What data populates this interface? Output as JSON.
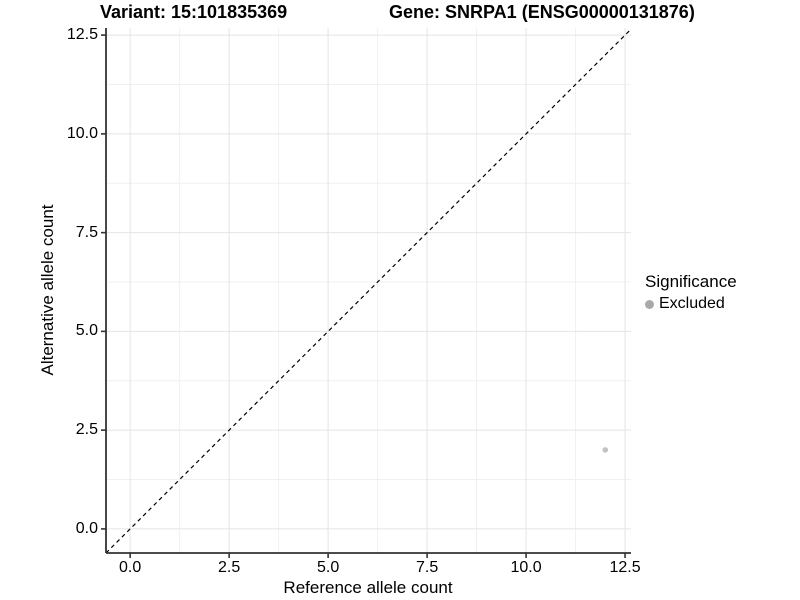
{
  "page": {
    "background": "#ffffff"
  },
  "chart_data": {
    "type": "scatter",
    "titles": {
      "left": "Variant: 15:101835369",
      "right": "Gene: SNRPA1 (ENSG00000131876)"
    },
    "xlabel": "Reference allele count",
    "ylabel": "Alternative allele count",
    "axes": {
      "xlim": [
        -0.61,
        12.65
      ],
      "ylim": [
        -0.61,
        12.68
      ],
      "x_ticks": {
        "values": [
          0,
          2.5,
          5,
          7.5,
          10,
          12.5
        ],
        "labels": [
          "0.0",
          "2.5",
          "5.0",
          "7.5",
          "10.0",
          "12.5"
        ]
      },
      "y_ticks": {
        "values": [
          0,
          2.5,
          5,
          7.5,
          10,
          12.5
        ],
        "labels": [
          "0.0",
          "2.5",
          "5.0",
          "7.5",
          "10.0",
          "12.5"
        ]
      }
    },
    "grid": {
      "major": true,
      "minor": true
    },
    "reference_line": {
      "style": "dashed",
      "equation": "y = x",
      "color": "#000000"
    },
    "series": [
      {
        "name": "Excluded",
        "color": "#c3c3c3",
        "points": [
          {
            "x": 12,
            "y": 2
          }
        ]
      }
    ],
    "legend": {
      "title": "Significance",
      "position": "right",
      "items": [
        {
          "label": "Excluded",
          "color": "#a9a9a9"
        }
      ]
    }
  },
  "colors": {
    "axis_line": "#333333",
    "grid_major": "#e4e4e4",
    "grid_minor": "#f0f0f0",
    "text": "#000000"
  }
}
